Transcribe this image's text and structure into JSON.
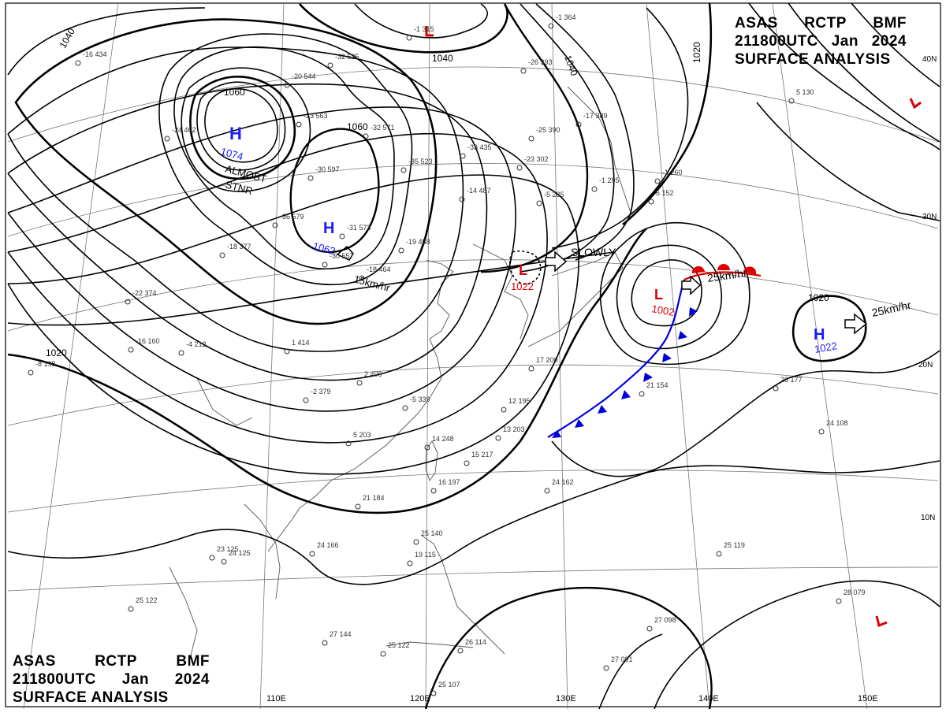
{
  "title": {
    "line1": [
      "ASAS",
      "RCTP",
      "BMF"
    ],
    "line2": [
      "211800UTC",
      "Jan",
      "2024"
    ],
    "line3": "SURFACE ANALYSIS"
  },
  "lon_labels": [
    "110E",
    "120E",
    "130E",
    "140E",
    "150E"
  ],
  "lat_labels": [
    "40N",
    "30N",
    "20N",
    "10N"
  ],
  "colors": {
    "high": "#1a1aff",
    "low": "#dd0000",
    "cold_front": "#0000dd",
    "warm_front": "#dd0000",
    "isobar": "#000000",
    "coast": "#555555"
  },
  "isobar_labels": [
    "1040",
    "1040",
    "1040",
    "1060",
    "1060",
    "1020",
    "1020",
    "1020"
  ],
  "pressure_systems": [
    {
      "type": "H",
      "value": "1074",
      "note": [
        "ALMOST",
        "STNR"
      ]
    },
    {
      "type": "H",
      "value": "1062",
      "motion": "15km/hr"
    },
    {
      "type": "L",
      "value": "1022",
      "motion": "SLOWLY"
    },
    {
      "type": "L",
      "value": "1002",
      "motion": "25km/hr"
    },
    {
      "type": "H",
      "value": "1022",
      "motion": "25km/hr"
    },
    {
      "type": "L",
      "value": ""
    },
    {
      "type": "L",
      "value": ""
    },
    {
      "type": "L",
      "value": ""
    }
  ],
  "station_plots": [
    "-16 434",
    "-20 544",
    "-32 525",
    "-23 563",
    "-32 571",
    "-24 462",
    "-25 390",
    "-23 302",
    "-35 523",
    "-33 435",
    "-30 597",
    "-36 579",
    "-31 573",
    "-30 557",
    "-19 458",
    "-18 464",
    "-14 487",
    "-22 374",
    "-18 377",
    "-16 160",
    "-4 212",
    "1 414",
    "2 406",
    "-2 379",
    "-5 339",
    "5 203",
    "14 248",
    "15 217",
    "16 197",
    "12 195",
    "13 203",
    "17 200",
    "21 154",
    "20 177",
    "24 108",
    "24 162",
    "21 184",
    "-8 198",
    "25 140",
    "19 115",
    "24 125",
    "25 122",
    "27 144",
    "25 107",
    "26 114",
    "25 119",
    "27 098",
    "27 091",
    "28 079",
    "23 125",
    "24 166",
    "25 122",
    "-1 315",
    "-1 364",
    "-26 393",
    "-5 285",
    "-17 389",
    "-1 295",
    "-1 260",
    "6 152",
    "5 130"
  ]
}
